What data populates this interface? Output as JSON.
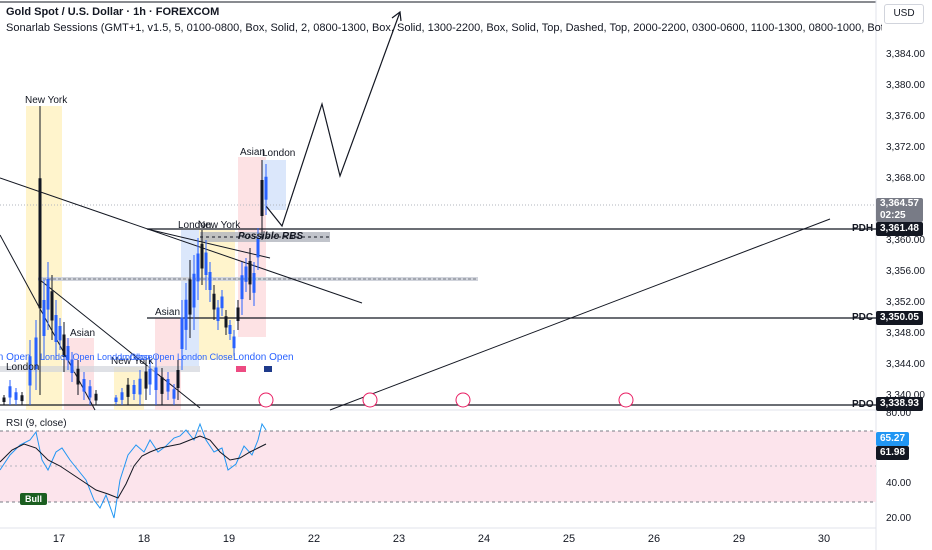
{
  "header": {
    "title": "Gold Spot / U.S. Dollar · 1h · FOREXCOM",
    "indicator": "Sonarlab Sessions (GMT+1, v1.5, 5, 0100-0800, Box, Solid, 2, 0800-1300, Box, Solid, 1300-2200, Box, Solid, Top, Dashed, Top, 2000-2200, 0300-0600, 1100-1300, 0800-1000, Bottom, Sol",
    "currency": "USD"
  },
  "price_axis": {
    "ticks": [
      "3,384.00",
      "3,380.00",
      "3,376.00",
      "3,372.00",
      "3,368.00",
      "3,360.00",
      "3,356.00",
      "3,352.00",
      "3,348.00",
      "3,344.00",
      "3,340.00"
    ]
  },
  "rsi_axis": {
    "ticks": [
      "80.00",
      "40.00",
      "20.00"
    ]
  },
  "time_axis": {
    "ticks": [
      "17",
      "18",
      "19",
      "22",
      "23",
      "24",
      "25",
      "26",
      "29",
      "30"
    ]
  },
  "price_badges": {
    "last": {
      "price": "3,364.57",
      "countdown": "02:25",
      "color": "#787b86"
    },
    "pdh": {
      "label": "PDH",
      "price": "3,361.48",
      "color": "#131722"
    },
    "pdc": {
      "label": "PDC",
      "price": "3,350.05",
      "color": "#131722"
    },
    "pdo": {
      "label": "PDO",
      "price": "3,338.93",
      "color": "#131722"
    }
  },
  "rsi": {
    "label": "RSI (9, close)",
    "value_a": "65.27",
    "value_b": "61.98",
    "color_a": "#2196f3",
    "color_b": "#131722"
  },
  "annotations": {
    "rbs": "Possible RBS",
    "bull": "Bull",
    "sessions": [
      {
        "text": "New York"
      },
      {
        "text": "Asian"
      },
      {
        "text": "New York"
      },
      {
        "text": "London"
      },
      {
        "text": "London"
      },
      {
        "text": "New York"
      },
      {
        "text": "Asian"
      },
      {
        "text": "Asian"
      },
      {
        "text": "London"
      },
      {
        "text": "London Open"
      },
      {
        "text": "London Open London Close"
      },
      {
        "text": "London Open London Close"
      },
      {
        "text": "London Open"
      }
    ]
  },
  "colors": {
    "up": "#2962ff",
    "down": "#131722",
    "ny_box": "#fff4cc",
    "asian_box": "#fde2e4",
    "london_box": "#dbe7fb",
    "rsi_band": "#fce4ec"
  }
}
